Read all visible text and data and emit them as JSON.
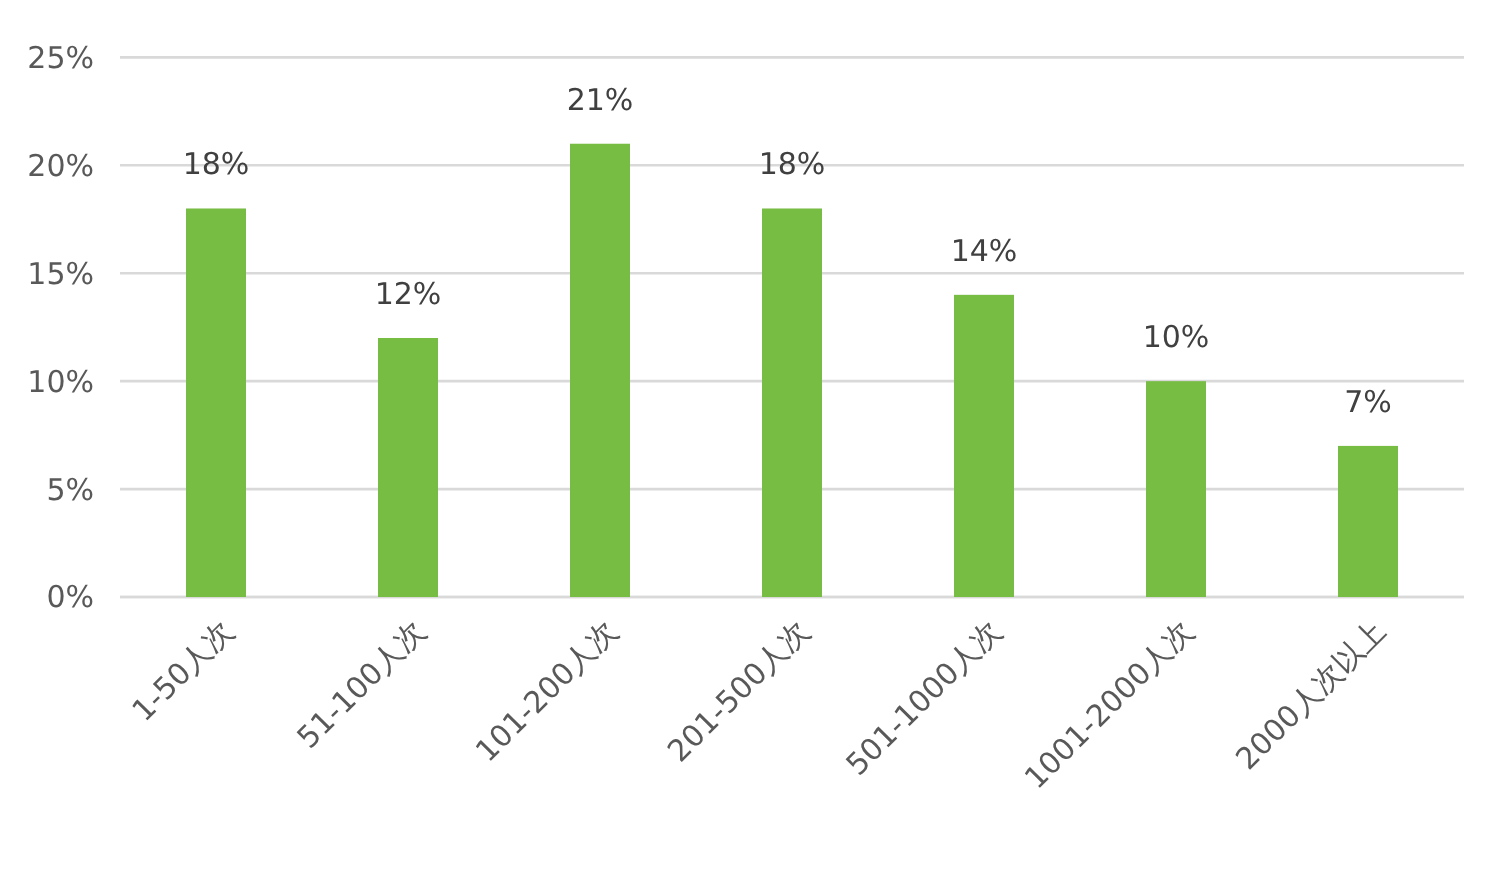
{
  "chart_data": {
    "type": "bar",
    "categories": [
      "1-50人次",
      "51-100人次",
      "101-200人次",
      "201-500人次",
      "501-1000人次",
      "1001-2000人次",
      "2000人次以上"
    ],
    "values": [
      18,
      12,
      21,
      18,
      14,
      10,
      7
    ],
    "value_labels": [
      "18%",
      "12%",
      "21%",
      "18%",
      "14%",
      "10%",
      "7%"
    ],
    "color": "#77bc43",
    "ylim": [
      0,
      25
    ],
    "yticks": [
      {
        "value": 0,
        "label": "0%"
      },
      {
        "value": 5,
        "label": "5%"
      },
      {
        "value": 10,
        "label": "10%"
      },
      {
        "value": 15,
        "label": "15%"
      },
      {
        "value": 20,
        "label": "20%"
      },
      {
        "value": 25,
        "label": "25%"
      }
    ],
    "grid": "y"
  }
}
